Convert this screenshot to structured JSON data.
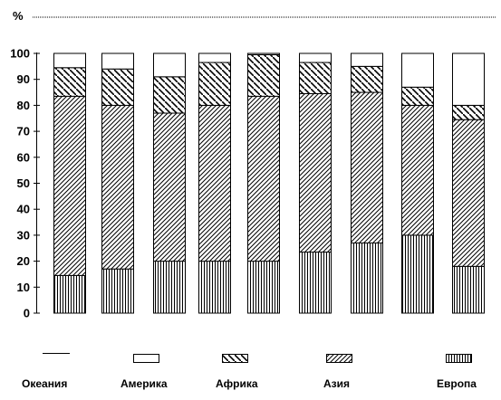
{
  "chart_data": {
    "type": "bar",
    "stacked": true,
    "unit_label": "%",
    "ylim": [
      0,
      100
    ],
    "yticks": [
      0,
      10,
      20,
      30,
      40,
      50,
      60,
      70,
      80,
      90,
      100
    ],
    "categories": [
      "",
      "",
      "",
      "",
      "",
      "",
      "",
      "",
      ""
    ],
    "series": [
      {
        "name": "Европа",
        "pattern": "vertical-lines",
        "values": [
          14.5,
          17,
          20,
          20,
          20,
          23.5,
          27,
          30,
          18
        ]
      },
      {
        "name": "Азия",
        "pattern": "fine-diagonal",
        "values": [
          69,
          63,
          57,
          60,
          63.5,
          61,
          58,
          50,
          56.5
        ]
      },
      {
        "name": "Африка",
        "pattern": "wide-diagonal",
        "values": [
          11,
          14,
          14,
          16.5,
          16,
          12,
          10,
          7,
          5.5
        ]
      },
      {
        "name": "Америка",
        "pattern": "white",
        "values": [
          5.5,
          6,
          9,
          3.5,
          0.5,
          3.5,
          5,
          13,
          20
        ]
      },
      {
        "name": "Океания",
        "pattern": "line",
        "values": [
          0,
          0,
          0,
          0,
          0,
          0,
          0,
          0,
          0
        ]
      }
    ],
    "legend": {
      "placement": "bottom",
      "order": [
        "Океания",
        "Америка",
        "Африка",
        "Азия",
        "Европа"
      ]
    }
  }
}
